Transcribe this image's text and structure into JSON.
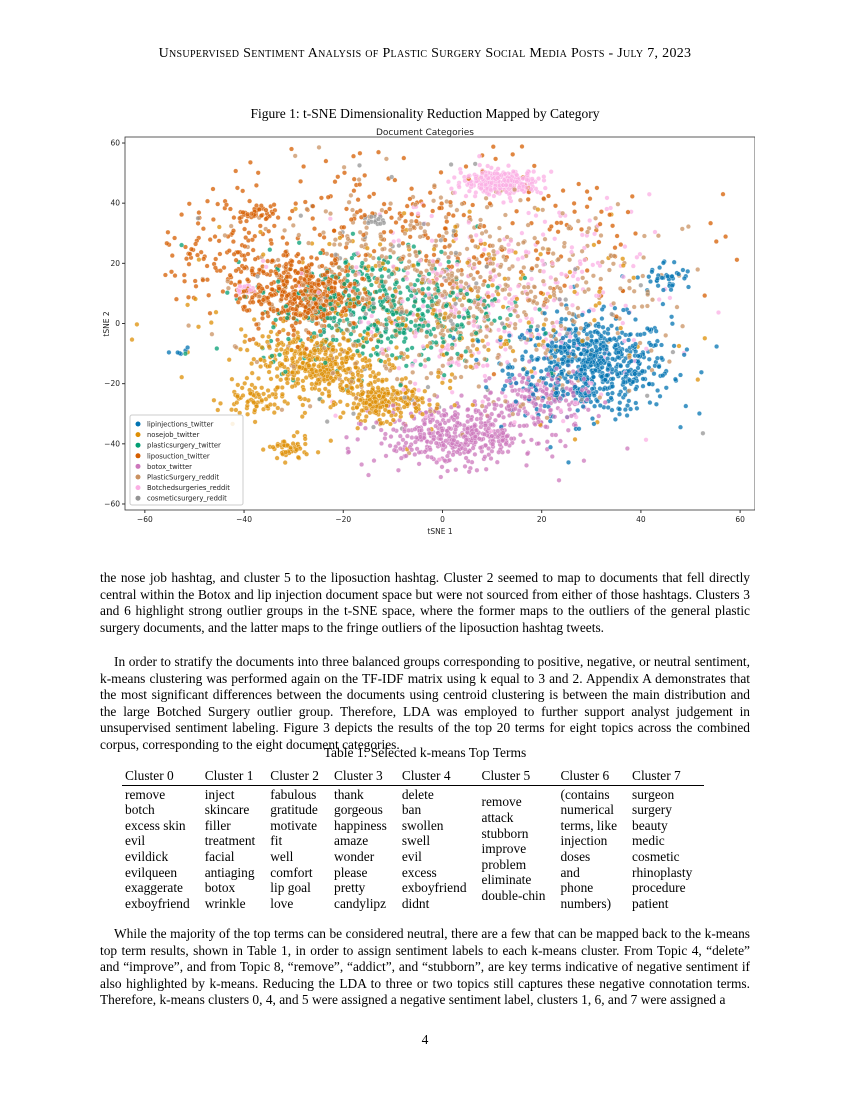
{
  "header": "Unsupervised Sentiment Analysis of Plastic Surgery Social Media Posts - July 7, 2023",
  "figure_caption": "Figure 1: t-SNE Dimensionality Reduction Mapped by Category",
  "chart_data": {
    "type": "scatter",
    "title": "Document Categories",
    "xlabel": "tSNE 1",
    "ylabel": "tSNE 2",
    "xlim": [
      -64,
      63
    ],
    "ylim": [
      -62,
      62
    ],
    "xticks": [
      -60,
      -40,
      -20,
      0,
      20,
      40,
      60
    ],
    "yticks": [
      60,
      40,
      20,
      0,
      -20,
      -40,
      -60
    ],
    "legend_position": "lower-left",
    "series": [
      {
        "name": "lipinjections_twitter",
        "color": "#0173b2",
        "clusters": [
          {
            "cx": 30,
            "cy": -14,
            "sx": 8,
            "sy": 8,
            "n": 650
          },
          {
            "cx": 45,
            "cy": 15,
            "sx": 3,
            "sy": 3,
            "n": 40
          },
          {
            "cx": -53,
            "cy": -9,
            "sx": 1,
            "sy": 1,
            "n": 6
          }
        ]
      },
      {
        "name": "nosejob_twitter",
        "color": "#de8f05",
        "clusters": [
          {
            "cx": -25,
            "cy": -14,
            "sx": 6,
            "sy": 5,
            "n": 380
          },
          {
            "cx": -12,
            "cy": -26,
            "sx": 4,
            "sy": 3,
            "n": 200
          },
          {
            "cx": -31,
            "cy": -42,
            "sx": 2,
            "sy": 2,
            "n": 50
          },
          {
            "cx": -38,
            "cy": -26,
            "sx": 3,
            "sy": 3,
            "n": 60
          },
          {
            "cx": -10,
            "cy": 0,
            "sx": 22,
            "sy": 18,
            "n": 250
          }
        ]
      },
      {
        "name": "plasticsurgery_twitter",
        "color": "#029e73",
        "clusters": [
          {
            "cx": -12,
            "cy": 5,
            "sx": 12,
            "sy": 10,
            "n": 450
          }
        ]
      },
      {
        "name": "liposuction_twitter",
        "color": "#d55e00",
        "clusters": [
          {
            "cx": -28,
            "cy": 10,
            "sx": 6,
            "sy": 6,
            "n": 450
          },
          {
            "cx": -38,
            "cy": 37,
            "sx": 2,
            "sy": 1.5,
            "n": 40
          },
          {
            "cx": -5,
            "cy": 30,
            "sx": 25,
            "sy": 15,
            "n": 300
          },
          {
            "cx": -45,
            "cy": 20,
            "sx": 6,
            "sy": 8,
            "n": 80
          }
        ]
      },
      {
        "name": "botox_twitter",
        "color": "#cc78bc",
        "clusters": [
          {
            "cx": 3,
            "cy": -37,
            "sx": 8,
            "sy": 5,
            "n": 450
          },
          {
            "cx": 20,
            "cy": -25,
            "sx": 5,
            "sy": 5,
            "n": 150
          }
        ]
      },
      {
        "name": "PlasticSurgery_reddit",
        "color": "#ca9161",
        "clusters": [
          {
            "cx": 0,
            "cy": 10,
            "sx": 20,
            "sy": 16,
            "n": 700
          }
        ]
      },
      {
        "name": "Botchedsurgeries_reddit",
        "color": "#fbafe4",
        "clusters": [
          {
            "cx": 12,
            "cy": 47,
            "sx": 4,
            "sy": 2,
            "n": 300
          },
          {
            "cx": 12,
            "cy": 5,
            "sx": 16,
            "sy": 18,
            "n": 350
          },
          {
            "cx": -40,
            "cy": 11,
            "sx": 1,
            "sy": 1,
            "n": 20
          }
        ]
      },
      {
        "name": "cosmeticsurgery_reddit",
        "color": "#949494",
        "clusters": [
          {
            "cx": 0,
            "cy": 5,
            "sx": 22,
            "sy": 20,
            "n": 80
          },
          {
            "cx": -14,
            "cy": 34,
            "sx": 1,
            "sy": 1,
            "n": 15
          }
        ]
      }
    ]
  },
  "paragraphs": [
    "the nose job hashtag, and cluster 5 to the liposuction hashtag. Cluster 2 seemed to map to documents that fell directly central within the Botox and lip injection document space but were not sourced from either of those hashtags. Clusters 3 and 6 highlight strong outlier groups in the t-SNE space, where the former maps to the outliers of the general plastic surgery documents, and the latter maps to the fringe outliers of the liposuction hashtag tweets.",
    "In order to stratify the documents into three balanced groups corresponding to positive, negative, or neutral sentiment, k-means clustering was performed again on the TF-IDF matrix using k equal to 3 and 2. Appendix A demonstrates that the most significant differences between the documents using centroid clustering is between the main distribution and the large Botched Surgery outlier group. Therefore, LDA was employed to further support analyst judgement in unsupervised sentiment labeling. Figure 3 depicts the results of the top 20 terms for eight topics across the combined corpus, corresponding to the eight document categories.",
    "While the majority of the top terms can be considered neutral, there are a few that can be mapped back to the k-means top term results, shown in Table 1, in order to assign sentiment labels to each k-means cluster. From Topic 4, “delete” and “improve”, and from Topic 8, “remove”, “addict”, and “stubborn”, are key terms indicative of negative sentiment if also highlighted by k-means. Reducing the LDA to three or two topics still captures these negative connotation terms. Therefore, k-means clusters 0, 4, and 5 were assigned a negative sentiment label, clusters 1, 6, and 7 were assigned a"
  ],
  "table": {
    "caption": "Table 1: Selected k-means Top Terms",
    "headers": [
      "Cluster 0",
      "Cluster 1",
      "Cluster 2",
      "Cluster 3",
      "Cluster 4",
      "Cluster 5",
      "Cluster 6",
      "Cluster 7"
    ],
    "columns": [
      [
        "remove",
        "botch",
        "excess skin",
        "evil",
        "evildick",
        "evilqueen",
        "exaggerate",
        "exboyfriend"
      ],
      [
        "inject",
        "skincare",
        "filler",
        "treatment",
        "facial",
        "antiaging",
        "botox",
        "wrinkle"
      ],
      [
        "fabulous",
        "gratitude",
        "motivate",
        "fit",
        "well",
        "comfort",
        "lip goal",
        "love"
      ],
      [
        "thank",
        "gorgeous",
        "happiness",
        "amaze",
        "wonder",
        "please",
        "pretty",
        "candylipz"
      ],
      [
        "delete",
        "ban",
        "swollen",
        "swell",
        "evil",
        "excess",
        "exboyfriend",
        "didnt"
      ],
      [
        "remove",
        "attack",
        "stubborn",
        "improve",
        "problem",
        "eliminate",
        "double-chin"
      ],
      [
        "(contains",
        "numerical",
        "terms, like",
        "injection",
        "doses",
        "and",
        "phone",
        "numbers)"
      ],
      [
        "surgeon",
        "surgery",
        "beauty",
        "medic",
        "cosmetic",
        "rhinoplasty",
        "procedure",
        "patient"
      ]
    ]
  },
  "page_number": "4"
}
